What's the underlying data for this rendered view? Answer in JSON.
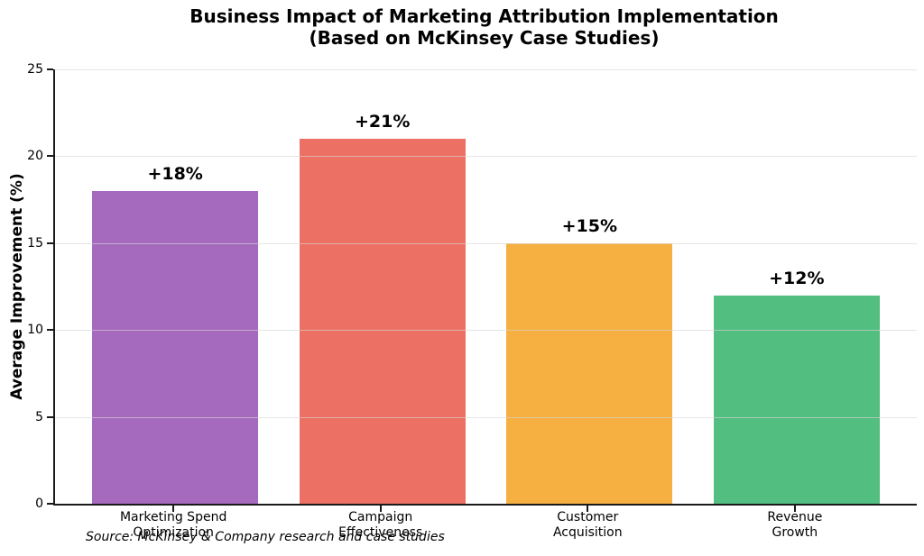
{
  "chart_data": {
    "type": "bar",
    "title": "Business Impact of Marketing Attribution Implementation",
    "subtitle": "(Based on McKinsey Case Studies)",
    "categories": [
      "Marketing Spend\nOptimization",
      "Campaign\nEffectiveness",
      "Customer\nAcquisition",
      "Revenue\nGrowth"
    ],
    "values": [
      18,
      21,
      15,
      12
    ],
    "bar_labels": [
      "+18%",
      "+21%",
      "+15%",
      "+12%"
    ],
    "bar_colors": [
      "#A569BD",
      "#EC7063",
      "#F5B041",
      "#52BE80"
    ],
    "xlabel": "",
    "ylabel": "Average Improvement (%)",
    "ylim": [
      0,
      25
    ],
    "yticks": [
      0,
      5,
      10,
      15,
      20,
      25
    ],
    "grid": "horizontal",
    "legend": "none",
    "source_note": "Source: McKinsey & Company research and case studies"
  }
}
